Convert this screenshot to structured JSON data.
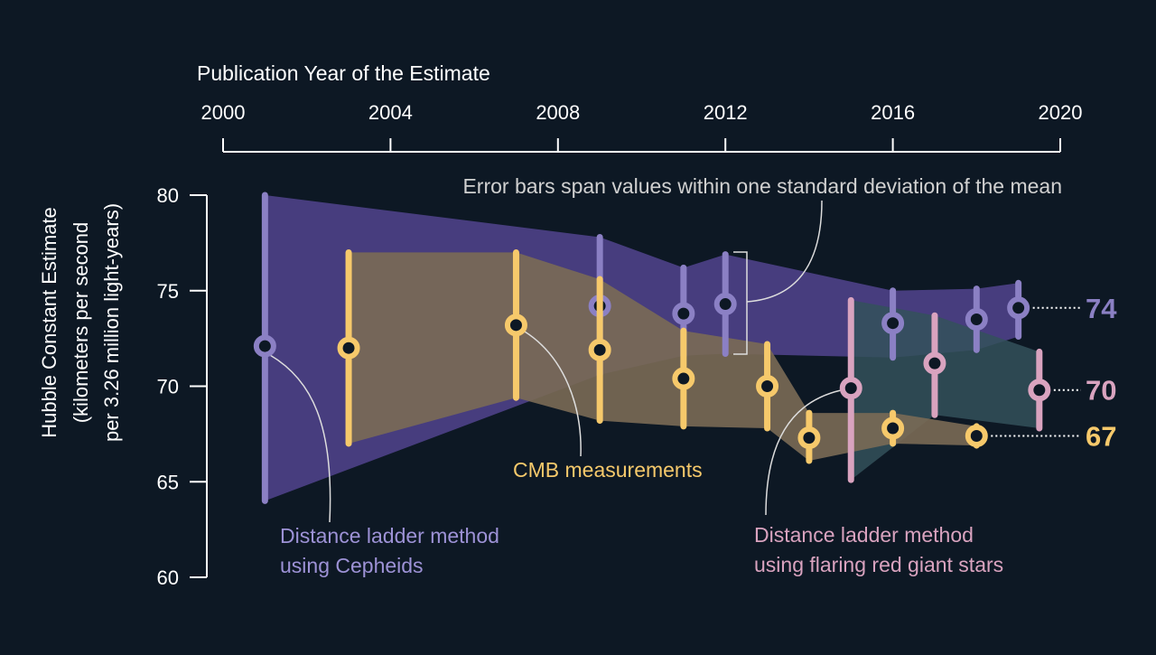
{
  "chart_data": {
    "type": "scatter",
    "title": "",
    "xlabel": "Publication Year of the Estimate",
    "ylabel_lines": [
      "Hubble Constant Estimate",
      "(kilometers per second",
      "per 3.26 million light-years)"
    ],
    "xlim": [
      2000,
      2020
    ],
    "ylim": [
      60,
      80
    ],
    "x_ticks": [
      "2000",
      "2004",
      "2008",
      "2012",
      "2016",
      "2020"
    ],
    "y_ticks": [
      "60",
      "65",
      "70",
      "75",
      "80"
    ],
    "grid": false,
    "note": "Error bars span values within one standard deviation of the mean",
    "series": [
      {
        "name": "Distance ladder method using Cepheids",
        "label_lines": [
          "Distance ladder method",
          "using Cepheids"
        ],
        "color": "#8b80c4",
        "band_color": "#4b3f84",
        "end_label": "74",
        "points": [
          {
            "x": 2001,
            "y": 72.1,
            "low": 64,
            "high": 80
          },
          {
            "x": 2009,
            "y": 74.2,
            "low": 70.6,
            "high": 77.8
          },
          {
            "x": 2011,
            "y": 73.8,
            "low": 71.6,
            "high": 76.2
          },
          {
            "x": 2012,
            "y": 74.3,
            "low": 71.7,
            "high": 76.9
          },
          {
            "x": 2016,
            "y": 73.3,
            "low": 71.5,
            "high": 75
          },
          {
            "x": 2018,
            "y": 73.5,
            "low": 71.9,
            "high": 75.1
          },
          {
            "x": 2019,
            "y": 74.1,
            "low": 72.6,
            "high": 75.4
          }
        ]
      },
      {
        "name": "CMB measurements",
        "label_lines": [
          "CMB measurements"
        ],
        "color": "#f6c96b",
        "band_color": "#7a6a55",
        "end_label": "67",
        "points": [
          {
            "x": 2003,
            "y": 72,
            "low": 67,
            "high": 77
          },
          {
            "x": 2007,
            "y": 73.2,
            "low": 69.4,
            "high": 77
          },
          {
            "x": 2009,
            "y": 71.9,
            "low": 68.2,
            "high": 75.6
          },
          {
            "x": 2011,
            "y": 70.4,
            "low": 67.9,
            "high": 72.9
          },
          {
            "x": 2013,
            "y": 70,
            "low": 67.8,
            "high": 72.2
          },
          {
            "x": 2014,
            "y": 67.3,
            "low": 66.1,
            "high": 68.6
          },
          {
            "x": 2016,
            "y": 67.8,
            "low": 67,
            "high": 68.6
          },
          {
            "x": 2018,
            "y": 67.4,
            "low": 66.9,
            "high": 67.9
          }
        ]
      },
      {
        "name": "Distance ladder method using flaring red giant stars",
        "label_lines": [
          "Distance ladder method",
          "using flaring red giant stars"
        ],
        "color": "#d9a3bf",
        "band_color": "#34515a",
        "end_label": "70",
        "points": [
          {
            "x": 2015,
            "y": 69.9,
            "low": 65.1,
            "high": 74.5
          },
          {
            "x": 2017,
            "y": 71.2,
            "low": 68.5,
            "high": 73.7
          },
          {
            "x": 2019.5,
            "y": 69.8,
            "low": 67.8,
            "high": 71.8
          }
        ]
      }
    ]
  }
}
